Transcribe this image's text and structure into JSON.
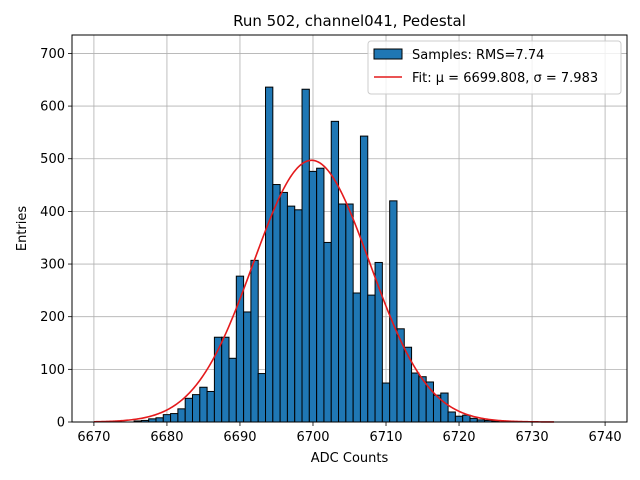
{
  "chart_data": {
    "type": "bar",
    "title": "Run 502, channel041, Pedestal",
    "xlabel": "ADC Counts",
    "ylabel": "Entries",
    "xlim": [
      6667,
      6743
    ],
    "ylim": [
      0,
      735
    ],
    "xticks": [
      6670,
      6680,
      6690,
      6700,
      6710,
      6720,
      6730,
      6740
    ],
    "yticks": [
      0,
      100,
      200,
      300,
      400,
      500,
      600,
      700
    ],
    "grid": true,
    "bin_width": 1,
    "bins": [
      {
        "x": 6676,
        "y": 2
      },
      {
        "x": 6677,
        "y": 3
      },
      {
        "x": 6678,
        "y": 6
      },
      {
        "x": 6679,
        "y": 8
      },
      {
        "x": 6680,
        "y": 14
      },
      {
        "x": 6681,
        "y": 16
      },
      {
        "x": 6682,
        "y": 25
      },
      {
        "x": 6683,
        "y": 45
      },
      {
        "x": 6684,
        "y": 52
      },
      {
        "x": 6685,
        "y": 66
      },
      {
        "x": 6686,
        "y": 58
      },
      {
        "x": 6687,
        "y": 161
      },
      {
        "x": 6688,
        "y": 161
      },
      {
        "x": 6689,
        "y": 121
      },
      {
        "x": 6690,
        "y": 277
      },
      {
        "x": 6691,
        "y": 209
      },
      {
        "x": 6692,
        "y": 307
      },
      {
        "x": 6693,
        "y": 92
      },
      {
        "x": 6694,
        "y": 636
      },
      {
        "x": 6695,
        "y": 451
      },
      {
        "x": 6696,
        "y": 436
      },
      {
        "x": 6697,
        "y": 410
      },
      {
        "x": 6698,
        "y": 403
      },
      {
        "x": 6699,
        "y": 632
      },
      {
        "x": 6700,
        "y": 476
      },
      {
        "x": 6701,
        "y": 482
      },
      {
        "x": 6702,
        "y": 341
      },
      {
        "x": 6703,
        "y": 571
      },
      {
        "x": 6704,
        "y": 414
      },
      {
        "x": 6705,
        "y": 414
      },
      {
        "x": 6706,
        "y": 245
      },
      {
        "x": 6707,
        "y": 543
      },
      {
        "x": 6708,
        "y": 241
      },
      {
        "x": 6709,
        "y": 303
      },
      {
        "x": 6710,
        "y": 74
      },
      {
        "x": 6711,
        "y": 420
      },
      {
        "x": 6712,
        "y": 177
      },
      {
        "x": 6713,
        "y": 142
      },
      {
        "x": 6714,
        "y": 93
      },
      {
        "x": 6715,
        "y": 86
      },
      {
        "x": 6716,
        "y": 76
      },
      {
        "x": 6717,
        "y": 51
      },
      {
        "x": 6718,
        "y": 55
      },
      {
        "x": 6719,
        "y": 19
      },
      {
        "x": 6720,
        "y": 11
      },
      {
        "x": 6721,
        "y": 13
      },
      {
        "x": 6722,
        "y": 7
      },
      {
        "x": 6723,
        "y": 4
      },
      {
        "x": 6724,
        "y": 3
      },
      {
        "x": 6725,
        "y": 2
      }
    ],
    "fit": {
      "mu": 6699.808,
      "sigma": 7.983,
      "amplitude": 497,
      "x_range": [
        6670,
        6733
      ]
    },
    "series": [
      {
        "name": "Samples: RMS=7.74",
        "kind": "histogram",
        "color": "#1f77b4",
        "edge_color": "#000000"
      },
      {
        "name_prefix": "Fit: ",
        "mu_label": "μ = 6699.808",
        "sigma_label": "σ = 7.983",
        "kind": "line",
        "color": "#e41a1c"
      }
    ],
    "legend_position": "top-right"
  }
}
